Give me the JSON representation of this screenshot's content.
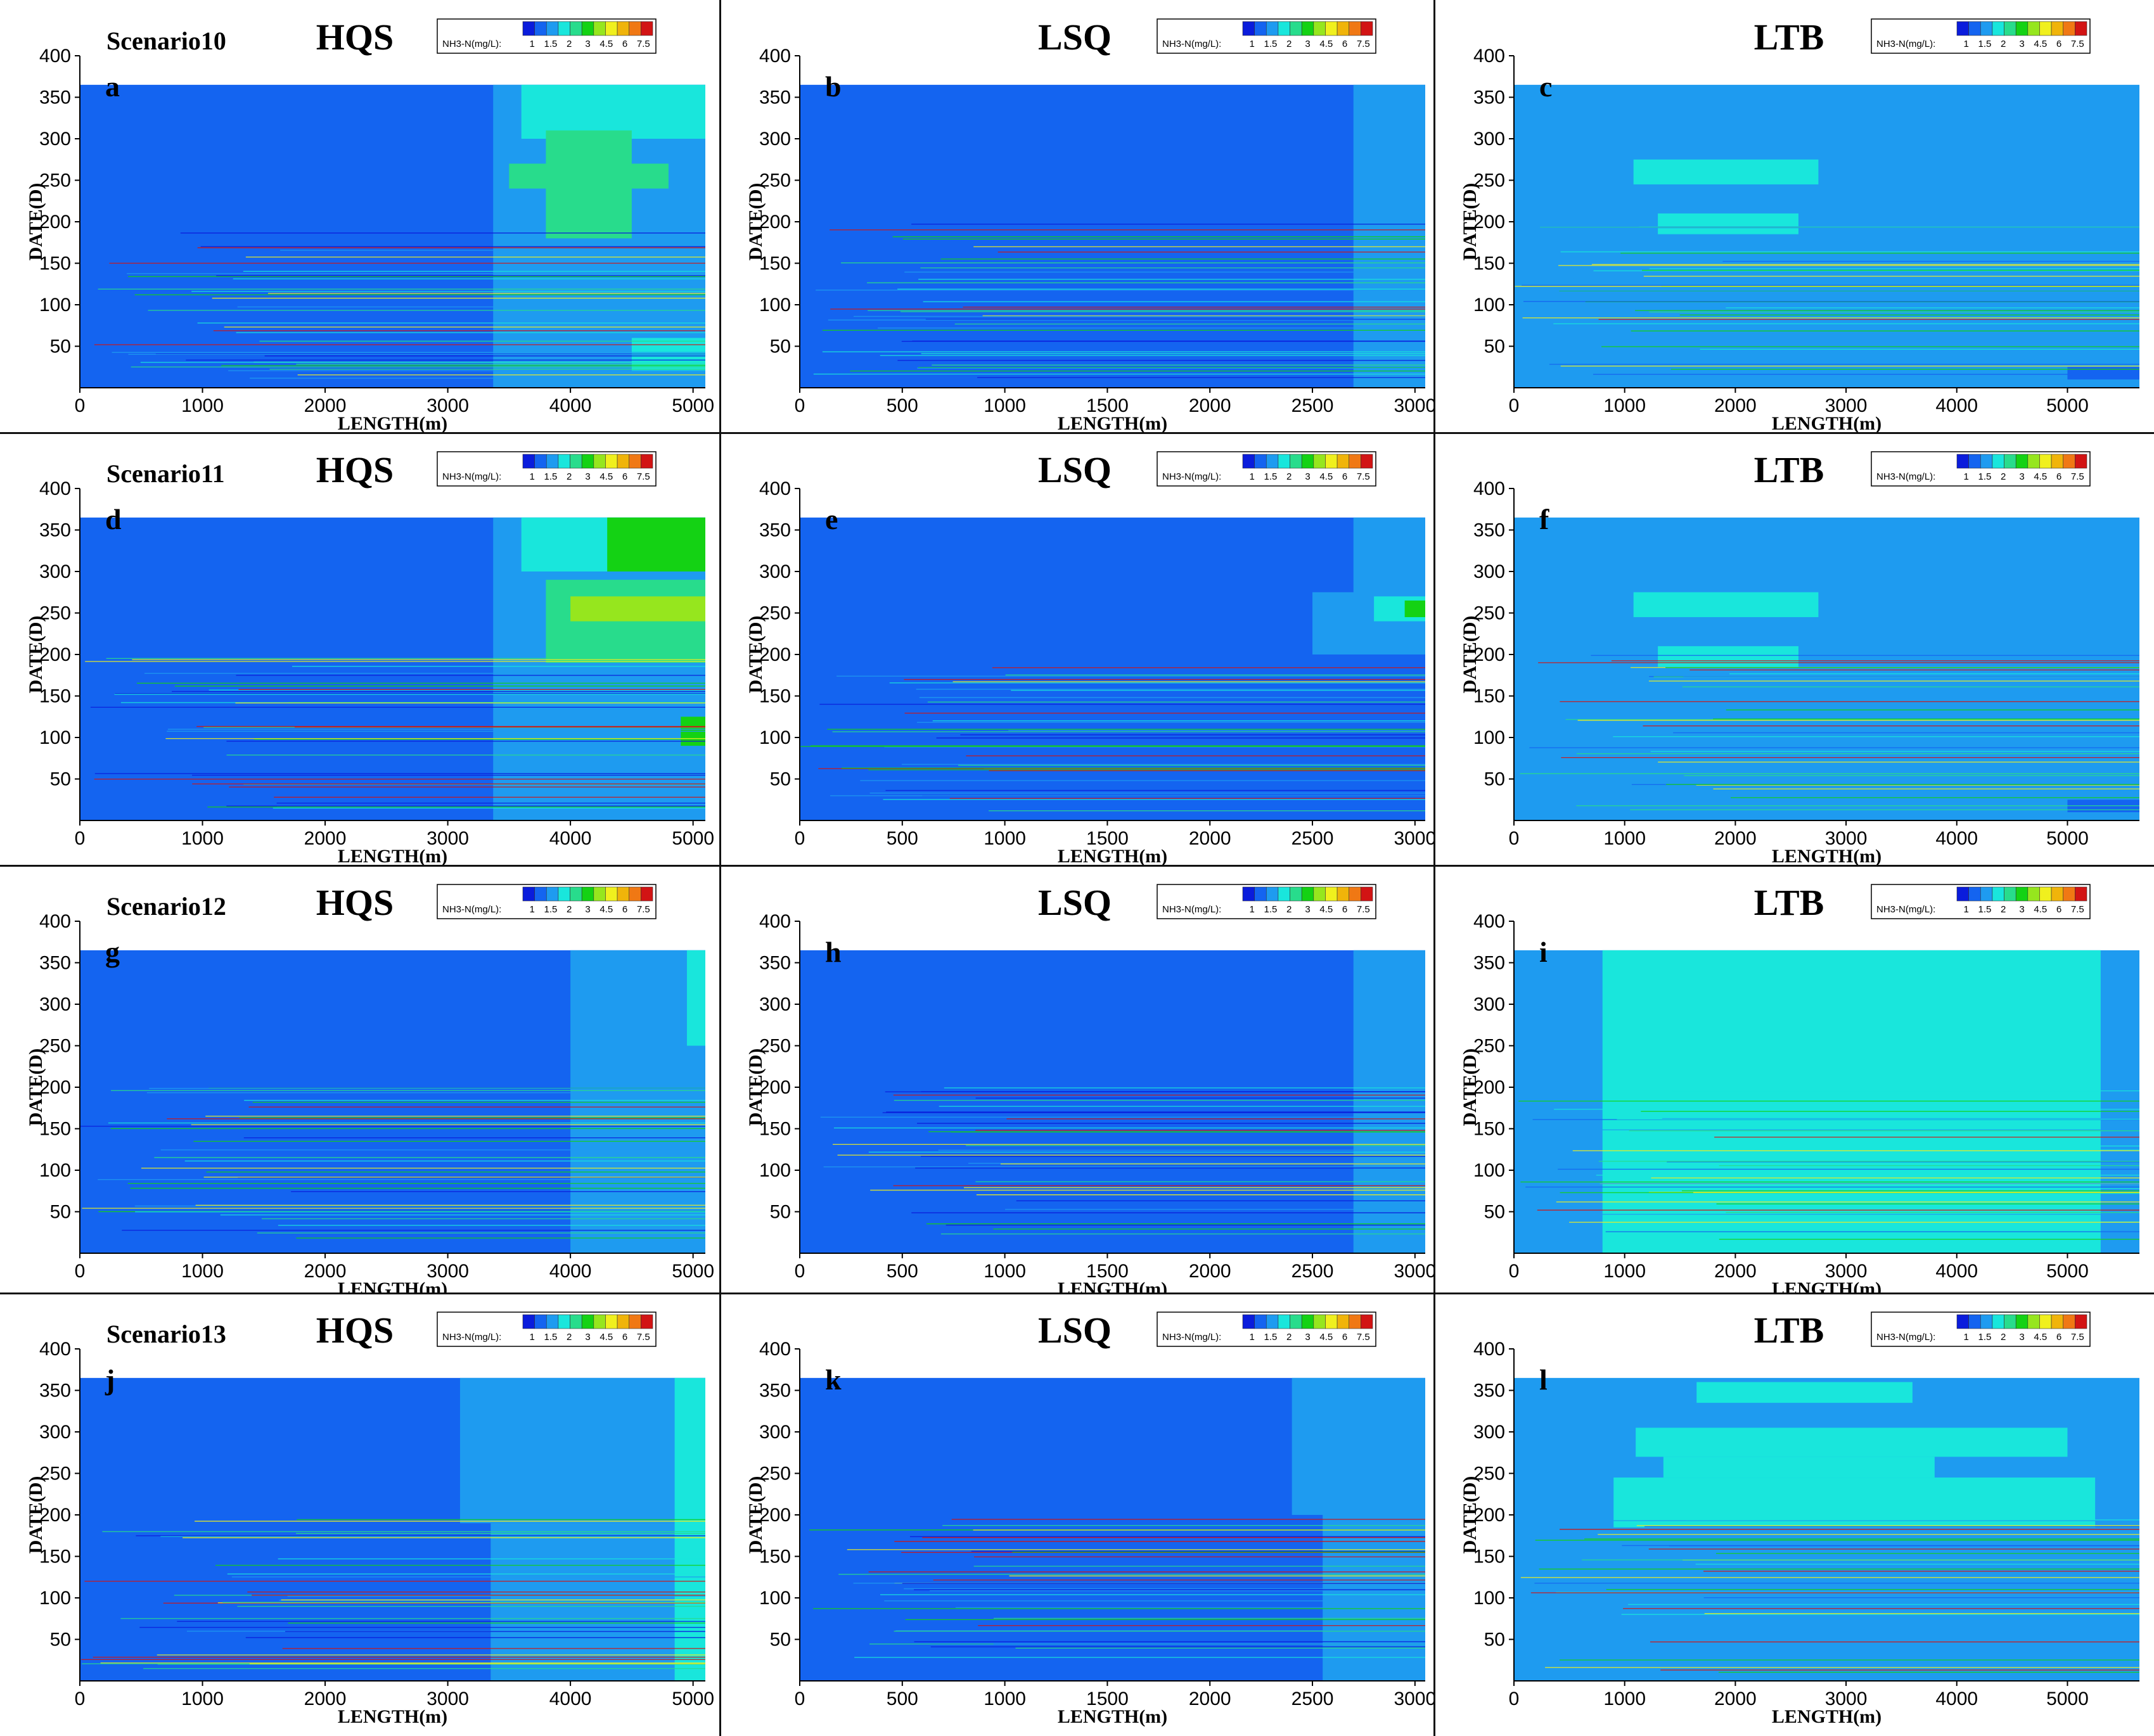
{
  "legend": {
    "title": "NH3-N(mg/L):",
    "labels": [
      "1",
      "1.5",
      "2",
      "3",
      "4.5",
      "6",
      "7.5"
    ],
    "colors": [
      "#0a1cdc",
      "#1464f0",
      "#1e9bf0",
      "#19e6dc",
      "#28dc8c",
      "#14d214",
      "#96e61e",
      "#f0f01e",
      "#f0b40a",
      "#f07814",
      "#d21414"
    ]
  },
  "axis_labels": {
    "x": "LENGTH(m)",
    "y": "DATE(D)"
  },
  "scenarios": [
    "Scenario10",
    "Scenario11",
    "Scenario12",
    "Scenario13"
  ],
  "rivers": [
    "HQS",
    "LSQ",
    "LTB"
  ],
  "chart_data": [
    {
      "type": "heatmap",
      "letter": "a",
      "scenario": "Scenario10",
      "river": "HQS",
      "xlim": [
        0,
        5100
      ],
      "ylim": [
        0,
        400
      ],
      "data_ylim": [
        0,
        365
      ],
      "xticks": [
        0,
        1000,
        2000,
        3000,
        4000,
        5000
      ],
      "yticks": [
        50,
        100,
        150,
        200,
        250,
        300,
        350,
        400
      ],
      "base": 1,
      "lines": [
        0.5
      ],
      "regions": [
        {
          "x": [
            3370,
            5100
          ],
          "y": [
            0,
            365
          ],
          "c": 2
        },
        {
          "x": [
            3600,
            5100
          ],
          "y": [
            300,
            365
          ],
          "c": 3
        },
        {
          "x": [
            3800,
            4500
          ],
          "y": [
            180,
            310
          ],
          "c": 4
        },
        {
          "x": [
            3500,
            4800
          ],
          "y": [
            240,
            270
          ],
          "c": 4
        },
        {
          "x": [
            3700,
            5100
          ],
          "y": [
            20,
            150
          ],
          "c": 2
        },
        {
          "x": [
            4500,
            5100
          ],
          "y": [
            20,
            60
          ],
          "c": 3
        }
      ]
    },
    {
      "type": "heatmap",
      "letter": "b",
      "scenario": "Scenario10",
      "river": "LSQ",
      "xlim": [
        0,
        3050
      ],
      "ylim": [
        0,
        400
      ],
      "data_ylim": [
        0,
        365
      ],
      "xticks": [
        0,
        500,
        1000,
        1500,
        2000,
        2500,
        3000
      ],
      "yticks": [
        50,
        100,
        150,
        200,
        250,
        300,
        350,
        400
      ],
      "base": 1,
      "lines": [
        0.4
      ],
      "regions": [
        {
          "x": [
            2700,
            3050
          ],
          "y": [
            0,
            365
          ],
          "c": 2
        }
      ]
    },
    {
      "type": "heatmap",
      "letter": "c",
      "scenario": "Scenario10",
      "river": "LTB",
      "xlim": [
        0,
        5650
      ],
      "ylim": [
        0,
        400
      ],
      "data_ylim": [
        0,
        365
      ],
      "xticks": [
        0,
        1000,
        2000,
        3000,
        4000,
        5000
      ],
      "yticks": [
        50,
        100,
        150,
        200,
        250,
        300,
        350,
        400
      ],
      "base": 2,
      "lines": [
        1
      ],
      "regions": [
        {
          "x": [
            1080,
            2750
          ],
          "y": [
            245,
            275
          ],
          "c": 3
        },
        {
          "x": [
            1300,
            2570
          ],
          "y": [
            185,
            210
          ],
          "c": 3
        },
        {
          "x": [
            5000,
            5650
          ],
          "y": [
            10,
            25
          ],
          "c": 1
        }
      ]
    },
    {
      "type": "heatmap",
      "letter": "d",
      "scenario": "Scenario11",
      "river": "HQS",
      "xlim": [
        0,
        5100
      ],
      "ylim": [
        0,
        400
      ],
      "data_ylim": [
        0,
        365
      ],
      "xticks": [
        0,
        1000,
        2000,
        3000,
        4000,
        5000
      ],
      "yticks": [
        50,
        100,
        150,
        200,
        250,
        300,
        350,
        400
      ],
      "base": 1,
      "lines": [
        0.5
      ],
      "regions": [
        {
          "x": [
            3370,
            5100
          ],
          "y": [
            0,
            365
          ],
          "c": 2
        },
        {
          "x": [
            3600,
            5100
          ],
          "y": [
            300,
            365
          ],
          "c": 3
        },
        {
          "x": [
            4300,
            5100
          ],
          "y": [
            300,
            365
          ],
          "c": 5
        },
        {
          "x": [
            3800,
            5100
          ],
          "y": [
            190,
            290
          ],
          "c": 4
        },
        {
          "x": [
            4000,
            5100
          ],
          "y": [
            240,
            270
          ],
          "c": 6
        },
        {
          "x": [
            3700,
            5100
          ],
          "y": [
            90,
            150
          ],
          "c": 2
        },
        {
          "x": [
            4900,
            5100
          ],
          "y": [
            90,
            125
          ],
          "c": 5
        }
      ]
    },
    {
      "type": "heatmap",
      "letter": "e",
      "scenario": "Scenario11",
      "river": "LSQ",
      "xlim": [
        0,
        3050
      ],
      "ylim": [
        0,
        400
      ],
      "data_ylim": [
        0,
        365
      ],
      "xticks": [
        0,
        500,
        1000,
        1500,
        2000,
        2500,
        3000
      ],
      "yticks": [
        50,
        100,
        150,
        200,
        250,
        300,
        350,
        400
      ],
      "base": 1,
      "lines": [
        0.4
      ],
      "regions": [
        {
          "x": [
            2700,
            3050
          ],
          "y": [
            200,
            365
          ],
          "c": 2
        },
        {
          "x": [
            2500,
            3050
          ],
          "y": [
            200,
            275
          ],
          "c": 2
        },
        {
          "x": [
            2800,
            3050
          ],
          "y": [
            240,
            270
          ],
          "c": 3
        },
        {
          "x": [
            2950,
            3050
          ],
          "y": [
            245,
            265
          ],
          "c": 5
        }
      ]
    },
    {
      "type": "heatmap",
      "letter": "f",
      "scenario": "Scenario11",
      "river": "LTB",
      "xlim": [
        0,
        5650
      ],
      "ylim": [
        0,
        400
      ],
      "data_ylim": [
        0,
        365
      ],
      "xticks": [
        0,
        1000,
        2000,
        3000,
        4000,
        5000
      ],
      "yticks": [
        50,
        100,
        150,
        200,
        250,
        300,
        350,
        400
      ],
      "base": 2,
      "lines": [
        1
      ],
      "regions": [
        {
          "x": [
            1080,
            2750
          ],
          "y": [
            245,
            275
          ],
          "c": 3
        },
        {
          "x": [
            1300,
            2570
          ],
          "y": [
            185,
            210
          ],
          "c": 3
        },
        {
          "x": [
            5000,
            5650
          ],
          "y": [
            10,
            25
          ],
          "c": 1
        }
      ]
    },
    {
      "type": "heatmap",
      "letter": "g",
      "scenario": "Scenario12",
      "river": "HQS",
      "xlim": [
        0,
        5100
      ],
      "ylim": [
        0,
        400
      ],
      "data_ylim": [
        0,
        365
      ],
      "xticks": [
        0,
        1000,
        2000,
        3000,
        4000,
        5000
      ],
      "yticks": [
        50,
        100,
        150,
        200,
        250,
        300,
        350,
        400
      ],
      "base": 1,
      "lines": [
        0.5
      ],
      "regions": [
        {
          "x": [
            4000,
            5100
          ],
          "y": [
            0,
            365
          ],
          "c": 2
        },
        {
          "x": [
            4950,
            5100
          ],
          "y": [
            250,
            365
          ],
          "c": 3
        }
      ]
    },
    {
      "type": "heatmap",
      "letter": "h",
      "scenario": "Scenario12",
      "river": "LSQ",
      "xlim": [
        0,
        3050
      ],
      "ylim": [
        0,
        400
      ],
      "data_ylim": [
        0,
        365
      ],
      "xticks": [
        0,
        500,
        1000,
        1500,
        2000,
        2500,
        3000
      ],
      "yticks": [
        50,
        100,
        150,
        200,
        250,
        300,
        350,
        400
      ],
      "base": 1,
      "lines": [
        0.4
      ],
      "regions": [
        {
          "x": [
            2700,
            3050
          ],
          "y": [
            0,
            365
          ],
          "c": 2
        }
      ]
    },
    {
      "type": "heatmap",
      "letter": "i",
      "scenario": "Scenario12",
      "river": "LTB",
      "xlim": [
        0,
        5650
      ],
      "ylim": [
        0,
        400
      ],
      "data_ylim": [
        0,
        365
      ],
      "xticks": [
        0,
        1000,
        2000,
        3000,
        4000,
        5000
      ],
      "yticks": [
        50,
        100,
        150,
        200,
        250,
        300,
        350,
        400
      ],
      "base": 2,
      "lines": [
        1
      ],
      "regions": [
        {
          "x": [
            800,
            5300
          ],
          "y": [
            0,
            365
          ],
          "c": 3
        }
      ]
    },
    {
      "type": "heatmap",
      "letter": "j",
      "scenario": "Scenario13",
      "river": "HQS",
      "xlim": [
        0,
        5100
      ],
      "ylim": [
        0,
        400
      ],
      "data_ylim": [
        0,
        365
      ],
      "xticks": [
        0,
        1000,
        2000,
        3000,
        4000,
        5000
      ],
      "yticks": [
        50,
        100,
        150,
        200,
        250,
        300,
        350,
        400
      ],
      "base": 1,
      "lines": [
        0.5
      ],
      "regions": [
        {
          "x": [
            3100,
            5100
          ],
          "y": [
            190,
            365
          ],
          "c": 2
        },
        {
          "x": [
            3350,
            5100
          ],
          "y": [
            0,
            190
          ],
          "c": 2
        },
        {
          "x": [
            4850,
            5100
          ],
          "y": [
            0,
            365
          ],
          "c": 3
        }
      ]
    },
    {
      "type": "heatmap",
      "letter": "k",
      "scenario": "Scenario13",
      "river": "LSQ",
      "xlim": [
        0,
        3050
      ],
      "ylim": [
        0,
        400
      ],
      "data_ylim": [
        0,
        365
      ],
      "xticks": [
        0,
        500,
        1000,
        1500,
        2000,
        2500,
        3000
      ],
      "yticks": [
        50,
        100,
        150,
        200,
        250,
        300,
        350,
        400
      ],
      "base": 1,
      "lines": [
        0.4
      ],
      "regions": [
        {
          "x": [
            2400,
            3050
          ],
          "y": [
            200,
            365
          ],
          "c": 2
        },
        {
          "x": [
            2550,
            3050
          ],
          "y": [
            0,
            200
          ],
          "c": 2
        }
      ]
    },
    {
      "type": "heatmap",
      "letter": "l",
      "scenario": "Scenario13",
      "river": "LTB",
      "xlim": [
        0,
        5650
      ],
      "ylim": [
        0,
        400
      ],
      "data_ylim": [
        0,
        365
      ],
      "xticks": [
        0,
        1000,
        2000,
        3000,
        4000,
        5000
      ],
      "yticks": [
        50,
        100,
        150,
        200,
        250,
        300,
        350,
        400
      ],
      "base": 2,
      "lines": [
        1
      ],
      "regions": [
        {
          "x": [
            1650,
            3600
          ],
          "y": [
            335,
            360
          ],
          "c": 3
        },
        {
          "x": [
            1100,
            5000
          ],
          "y": [
            270,
            305
          ],
          "c": 3
        },
        {
          "x": [
            1350,
            3800
          ],
          "y": [
            245,
            270
          ],
          "c": 3
        },
        {
          "x": [
            900,
            5250
          ],
          "y": [
            185,
            245
          ],
          "c": 3
        }
      ]
    }
  ]
}
